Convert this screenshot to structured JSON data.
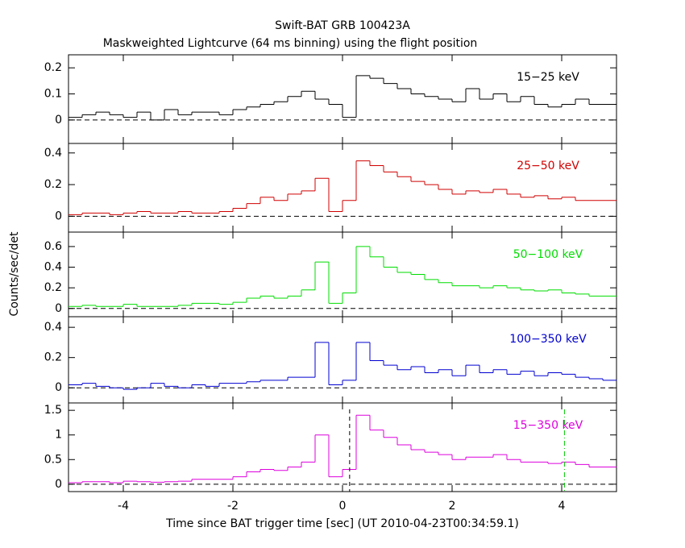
{
  "chart_data": {
    "type": "step",
    "title": "Swift-BAT GRB 100423A",
    "subtitle": "Maskweighted Lightcurve (64 ms binning) using the flight position",
    "x_label": "Time since BAT trigger time [sec] (UT 2010-04-23T00:34:59.1)",
    "y_label": "Counts/sec/det",
    "xlim": [
      -5,
      5
    ],
    "xticks": [
      -4,
      -2,
      0,
      2,
      4
    ],
    "x": [
      -5,
      -4.75,
      -4.5,
      -4.25,
      -4,
      -3.75,
      -3.5,
      -3.25,
      -3,
      -2.75,
      -2.5,
      -2.25,
      -2,
      -1.75,
      -1.5,
      -1.25,
      -1,
      -0.75,
      -0.5,
      -0.25,
      0,
      0.25,
      0.5,
      0.75,
      1,
      1.25,
      1.5,
      1.75,
      2,
      2.25,
      2.5,
      2.75,
      3,
      3.25,
      3.5,
      3.75,
      4,
      4.25,
      4.5,
      4.75
    ],
    "series": [
      {
        "name": "15−25 keV",
        "color": "#000000",
        "ylim": [
          -0.09,
          0.25
        ],
        "yticks": [
          0,
          0.1,
          0.2
        ],
        "values": [
          0.01,
          0.02,
          0.03,
          0.02,
          0.01,
          0.03,
          0.0,
          0.04,
          0.02,
          0.03,
          0.03,
          0.02,
          0.04,
          0.05,
          0.06,
          0.07,
          0.09,
          0.11,
          0.08,
          0.06,
          0.01,
          0.17,
          0.16,
          0.14,
          0.12,
          0.1,
          0.09,
          0.08,
          0.07,
          0.12,
          0.08,
          0.1,
          0.07,
          0.09,
          0.06,
          0.05,
          0.06,
          0.08,
          0.06,
          0.06
        ]
      },
      {
        "name": "25−50 keV",
        "color": "#d00000",
        "ylim": [
          -0.1,
          0.46
        ],
        "yticks": [
          0,
          0.2,
          0.4
        ],
        "values": [
          0.01,
          0.02,
          0.02,
          0.01,
          0.02,
          0.03,
          0.02,
          0.02,
          0.03,
          0.02,
          0.02,
          0.03,
          0.05,
          0.08,
          0.12,
          0.1,
          0.14,
          0.16,
          0.24,
          0.03,
          0.1,
          0.35,
          0.32,
          0.28,
          0.25,
          0.22,
          0.2,
          0.17,
          0.14,
          0.16,
          0.15,
          0.17,
          0.14,
          0.12,
          0.13,
          0.11,
          0.12,
          0.1,
          0.1,
          0.1
        ]
      },
      {
        "name": "50−100 keV",
        "color": "#00dd00",
        "ylim": [
          -0.08,
          0.74
        ],
        "yticks": [
          0,
          0.2,
          0.4,
          0.6
        ],
        "values": [
          0.02,
          0.03,
          0.02,
          0.02,
          0.04,
          0.02,
          0.02,
          0.02,
          0.03,
          0.05,
          0.05,
          0.04,
          0.06,
          0.1,
          0.12,
          0.1,
          0.12,
          0.18,
          0.45,
          0.05,
          0.15,
          0.6,
          0.5,
          0.4,
          0.35,
          0.33,
          0.28,
          0.25,
          0.22,
          0.22,
          0.2,
          0.22,
          0.2,
          0.18,
          0.17,
          0.18,
          0.15,
          0.14,
          0.12,
          0.12
        ]
      },
      {
        "name": "100−350 keV",
        "color": "#0000d0",
        "ylim": [
          -0.1,
          0.47
        ],
        "yticks": [
          0,
          0.2,
          0.4
        ],
        "values": [
          0.02,
          0.03,
          0.01,
          0.0,
          -0.01,
          0.0,
          0.03,
          0.01,
          0.0,
          0.02,
          0.01,
          0.03,
          0.03,
          0.04,
          0.05,
          0.05,
          0.07,
          0.07,
          0.3,
          0.02,
          0.05,
          0.3,
          0.18,
          0.15,
          0.12,
          0.14,
          0.1,
          0.12,
          0.08,
          0.15,
          0.1,
          0.12,
          0.09,
          0.11,
          0.08,
          0.1,
          0.09,
          0.07,
          0.06,
          0.05
        ]
      },
      {
        "name": "15−350 keV",
        "color": "#dd00dd",
        "ylim": [
          -0.15,
          1.65
        ],
        "yticks": [
          0,
          0.5,
          1,
          1.5
        ],
        "values": [
          0.03,
          0.05,
          0.05,
          0.03,
          0.06,
          0.05,
          0.04,
          0.05,
          0.06,
          0.1,
          0.1,
          0.1,
          0.15,
          0.25,
          0.3,
          0.28,
          0.35,
          0.45,
          1.0,
          0.15,
          0.3,
          1.4,
          1.1,
          0.95,
          0.8,
          0.7,
          0.65,
          0.6,
          0.5,
          0.55,
          0.55,
          0.6,
          0.5,
          0.45,
          0.45,
          0.42,
          0.45,
          0.4,
          0.35,
          0.35
        ]
      }
    ],
    "markers": [
      {
        "x": 0.13,
        "color": "#000000",
        "style": "dashed"
      },
      {
        "x": 4.05,
        "color": "#00cc00",
        "style": "dashdot"
      }
    ]
  }
}
